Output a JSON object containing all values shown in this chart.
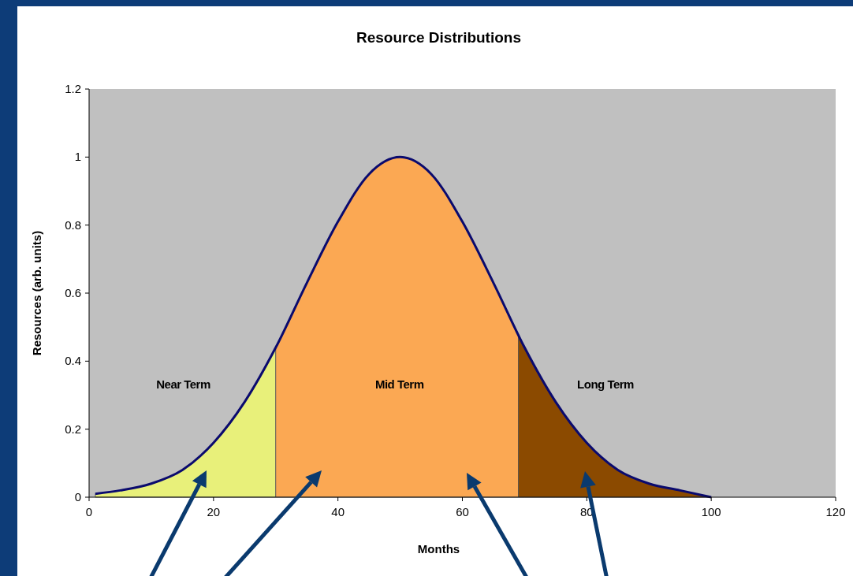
{
  "chart_data": {
    "type": "area",
    "title": "Resource Distributions",
    "xlabel": "Months",
    "ylabel": "Resources (arb. units)",
    "xlim": [
      0,
      120
    ],
    "xticks": [
      0,
      20,
      40,
      60,
      80,
      100,
      120
    ],
    "ylim": [
      0,
      1.2
    ],
    "yticks": [
      0,
      0.2,
      0.4,
      0.6,
      0.8,
      1,
      1.2
    ],
    "grid": false,
    "series": [
      {
        "name": "Near Term",
        "color": "#e8f07a",
        "x": [
          1,
          5,
          10,
          15,
          20,
          25,
          30
        ],
        "values": [
          0.01,
          0.02,
          0.04,
          0.08,
          0.16,
          0.28,
          0.44
        ]
      },
      {
        "name": "Mid Term",
        "color": "#fba853",
        "x": [
          30,
          35,
          40,
          45,
          50,
          55,
          60,
          65,
          69
        ],
        "values": [
          0.44,
          0.63,
          0.81,
          0.95,
          1,
          0.95,
          0.81,
          0.63,
          0.48
        ]
      },
      {
        "name": "Long Term",
        "color": "#8b4a00",
        "x": [
          69,
          70,
          75,
          80,
          85,
          90,
          95,
          100
        ],
        "values": [
          0.48,
          0.44,
          0.28,
          0.16,
          0.08,
          0.04,
          0.02,
          0
        ]
      },
      {
        "type": "line",
        "color": "#0a0a6e",
        "x": [
          1,
          5,
          10,
          15,
          20,
          25,
          30,
          35,
          40,
          45,
          50,
          55,
          60,
          65,
          70,
          75,
          80,
          85,
          90,
          95,
          100
        ],
        "values": [
          0.01,
          0.02,
          0.04,
          0.08,
          0.16,
          0.28,
          0.44,
          0.63,
          0.81,
          0.95,
          1,
          0.95,
          0.81,
          0.63,
          0.44,
          0.28,
          0.16,
          0.08,
          0.04,
          0.02,
          0
        ]
      }
    ]
  }
}
